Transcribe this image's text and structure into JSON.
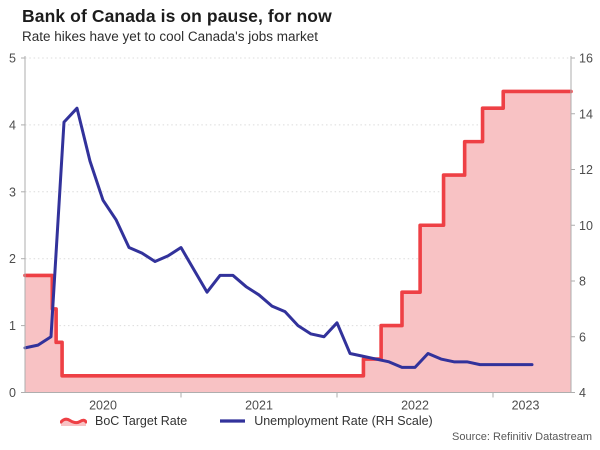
{
  "header": {
    "title": "Bank of Canada is on pause, for now",
    "subtitle": "Rate hikes have yet to cool Canada's jobs market"
  },
  "source": "Source: Refinitiv Datastream",
  "legend": {
    "position": "bottom-left",
    "items": [
      {
        "label": "BoC Target Rate",
        "swatch": "red-area-swatch",
        "color": "#ee4045",
        "fill": "#f8c2c4"
      },
      {
        "label": "Unemployment Rate (RH Scale)",
        "swatch": "blue-line-swatch",
        "color": "#32329b"
      }
    ]
  },
  "colors": {
    "boc_red": "#ee4045",
    "boc_fill_pink": "#f8c2c4",
    "unemployment_blue": "#32329b",
    "axis_line": "#aeaeae",
    "gridline": "#dcdcdc",
    "tick_text": "#4d4d4d"
  },
  "chart_data": {
    "type": "line",
    "title": "Bank of Canada is on pause, for now",
    "subtitle": "Rate hikes have yet to cool Canada's jobs market",
    "grid": {
      "horizontal": true,
      "style": "dotted"
    },
    "x_axis": {
      "start": "2020-01",
      "end": "2023-04",
      "total_months": 42,
      "year_labels": [
        "2020",
        "2021",
        "2022",
        "2023"
      ],
      "year_tick_months": [
        12,
        24,
        36
      ],
      "year_label_centers_m": [
        6,
        18,
        30,
        38.5
      ]
    },
    "left_axis": {
      "min": 0,
      "max": 5,
      "ticks": [
        0,
        1,
        2,
        3,
        4,
        5
      ]
    },
    "right_axis": {
      "min": 4,
      "max": 16,
      "ticks": [
        4,
        6,
        8,
        10,
        12,
        14,
        16
      ]
    },
    "series": [
      {
        "name": "BoC Target Rate",
        "axis": "left",
        "style": "step-area",
        "color": "#ee4045",
        "fill": "#f8c2c4",
        "unit": "%",
        "points": [
          {
            "date": "2020-01-01",
            "value": 1.75
          },
          {
            "date": "2020-03-04",
            "value": 1.25
          },
          {
            "date": "2020-03-13",
            "value": 0.75
          },
          {
            "date": "2020-03-27",
            "value": 0.25
          },
          {
            "date": "2022-03-02",
            "value": 0.5
          },
          {
            "date": "2022-04-13",
            "value": 1.0
          },
          {
            "date": "2022-06-01",
            "value": 1.5
          },
          {
            "date": "2022-07-13",
            "value": 2.5
          },
          {
            "date": "2022-09-07",
            "value": 3.25
          },
          {
            "date": "2022-10-26",
            "value": 3.75
          },
          {
            "date": "2022-12-07",
            "value": 4.25
          },
          {
            "date": "2023-01-25",
            "value": 4.5
          }
        ]
      },
      {
        "name": "Unemployment Rate (RH Scale)",
        "axis": "right",
        "style": "line",
        "color": "#32329b",
        "unit": "%",
        "start": "2020-01",
        "monthly_values": [
          5.6,
          5.7,
          6.0,
          13.7,
          14.2,
          12.3,
          10.9,
          10.2,
          9.2,
          9.0,
          8.7,
          8.9,
          9.2,
          8.4,
          7.6,
          8.2,
          8.2,
          7.8,
          7.5,
          7.1,
          6.9,
          6.4,
          6.1,
          6.0,
          6.5,
          5.4,
          5.3,
          5.2,
          5.1,
          4.9,
          4.9,
          5.4,
          5.2,
          5.1,
          5.1,
          5.0,
          5.0,
          5.0,
          5.0,
          5.0
        ]
      }
    ]
  }
}
